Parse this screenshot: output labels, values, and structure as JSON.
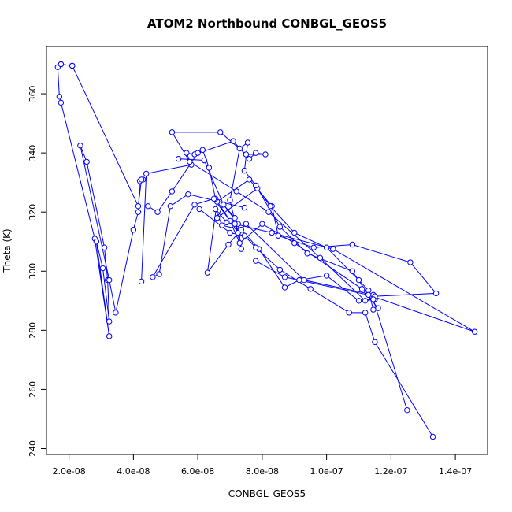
{
  "chart_data": {
    "type": "line",
    "title": "ATOM2 Northbound CONBGL_GEOS5",
    "xlabel": "CONBGL_GEOS5",
    "ylabel": "Theta (K)",
    "xlim": [
      1.3e-08,
      1.5e-07
    ],
    "ylim": [
      238,
      376
    ],
    "x_ticks": [
      2e-08,
      4e-08,
      6e-08,
      8e-08,
      1e-07,
      1.2e-07,
      1.4e-07
    ],
    "x_tick_labels": [
      "2.0e-08",
      "4.0e-08",
      "6.0e-08",
      "8.0e-08",
      "1.0e-07",
      "1.2e-07",
      "1.4e-07"
    ],
    "y_ticks": [
      240,
      260,
      280,
      300,
      320,
      340,
      360
    ],
    "y_tick_labels": [
      "240",
      "260",
      "280",
      "300",
      "320",
      "340",
      "360"
    ],
    "grid": false,
    "line_color": "#0000ff",
    "marker": "open-circle",
    "series": [
      {
        "x": [
          2.1e-08,
          1.75e-08,
          1.65e-08,
          1.7e-08,
          1.75e-08,
          2.8e-08,
          3.25e-08,
          2.85e-08,
          3.05e-08,
          3.25e-08,
          3.2e-08,
          3.1e-08,
          2.55e-08,
          2.35e-08,
          3.25e-08,
          3.45e-08,
          4e-08,
          4.15e-08,
          4.2e-08,
          4.3e-08,
          4.25e-08,
          4.15e-08,
          2.1e-08,
          1.75e-08
        ],
        "y": [
          369.5,
          370,
          369,
          359,
          357,
          311,
          278,
          310,
          301,
          283,
          297,
          308,
          337,
          342.5,
          297,
          286,
          314,
          320,
          330.5,
          331,
          331,
          322,
          369.5,
          370
        ]
      },
      {
        "x": [
          4.25e-08,
          4.4e-08,
          5.8e-08,
          5.65e-08,
          5.9e-08,
          7.1e-08,
          7.6e-08,
          7.8e-08,
          8.1e-08,
          7.5e-08,
          6.7e-08,
          5.2e-08,
          5.75e-08,
          7.2e-08,
          8.2e-08,
          9.8e-08,
          1.12e-07,
          1.15e-07,
          1.145e-07,
          9.3e-08,
          7.5e-08,
          6.95e-08,
          6.3e-08,
          6.6e-08,
          7.6e-08,
          8.3e-08,
          8.5e-08,
          9.6e-08,
          1.08e-07,
          1.26e-07,
          1.34e-07,
          1.15e-07,
          8.7e-08,
          7.8e-08
        ],
        "y": [
          296.5,
          333,
          336,
          340,
          339.5,
          344,
          338,
          340,
          339.5,
          339.5,
          347,
          347,
          337,
          327,
          320,
          304.5,
          290,
          290.5,
          292,
          297,
          316,
          309,
          299.5,
          323.5,
          331,
          322,
          312,
          308,
          309,
          303,
          292.5,
          291.5,
          298,
          303.5
        ]
      },
      {
        "x": [
          4.45e-08,
          4.75e-08,
          5.2e-08,
          6e-08,
          6.15e-08,
          6.35e-08,
          6.55e-08,
          7.25e-08,
          7.15e-08,
          6.8e-08,
          6.6e-08,
          7.85e-08,
          8.25e-08,
          9e-08,
          1e-07,
          1.1e-07,
          1.13e-07,
          1.145e-07,
          1.16e-07,
          1.11e-07,
          9e-08,
          8e-08,
          7.3e-08,
          7e-08,
          6.5e-08,
          5.9e-08,
          4.6e-08,
          4.8e-08,
          5.15e-08,
          5.7e-08,
          7.45e-08
        ],
        "y": [
          322,
          320,
          327,
          340,
          341,
          335,
          324.5,
          313,
          318,
          322.5,
          318,
          328,
          322,
          313,
          308,
          297,
          293.5,
          287,
          287.5,
          294,
          309.5,
          316,
          309.5,
          317,
          324.5,
          322.5,
          298,
          299,
          322,
          326,
          321.5
        ]
      },
      {
        "x": [
          5.4e-08,
          6.2e-08,
          6.8e-08,
          7.25e-08,
          7.35e-08,
          7e-08,
          7.3e-08,
          7.55e-08,
          7.45e-08,
          7.8e-08,
          8.55e-08,
          9.4e-08,
          1.08e-07,
          1.13e-07,
          1.46e-07,
          1.02e-07,
          8.3e-08,
          7.15e-08,
          6.9e-08,
          6.55e-08,
          6.75e-08,
          7.35e-08,
          7.9e-08,
          8.7e-08,
          9.15e-08,
          1e-07,
          1.1e-07,
          1.145e-07,
          1.25e-07
        ],
        "y": [
          338,
          337.5,
          322.5,
          316,
          307.5,
          324,
          341.5,
          343.5,
          334,
          329,
          315,
          306,
          300,
          292,
          279.5,
          307.5,
          313,
          316,
          316.5,
          321,
          315.5,
          314,
          307.5,
          294.5,
          297,
          298.5,
          290,
          290.5,
          253
        ]
      },
      {
        "x": [
          6.05e-08,
          7e-08,
          7.45e-08,
          7.8e-08,
          8.55e-08,
          9.5e-08,
          1.07e-07,
          1.12e-07,
          1.15e-07,
          1.33e-07
        ],
        "y": [
          321,
          313,
          312,
          308,
          300.5,
          294,
          286,
          286,
          276,
          244
        ]
      }
    ]
  }
}
